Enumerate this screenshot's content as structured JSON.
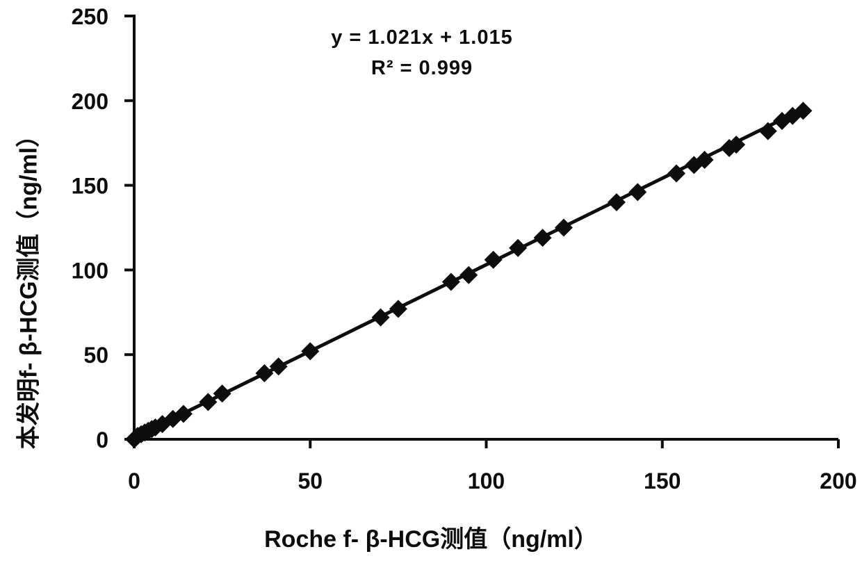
{
  "figure": {
    "background": "#ffffff",
    "ink_color": "#0d0d0d"
  },
  "chart_data": {
    "type": "scatter",
    "title": "",
    "xlabel": "Roche f- β-HCG测值（ng/ml）",
    "ylabel": "本发明f- β-HCG测值（ng/ml）",
    "xlim": [
      0,
      200
    ],
    "ylim": [
      0,
      250
    ],
    "x_ticks": [
      0,
      50,
      100,
      150,
      200
    ],
    "y_ticks": [
      0,
      50,
      100,
      150,
      200,
      250
    ],
    "grid": false,
    "legend": "none",
    "marker": "diamond",
    "marker_color": "#0d0d0d",
    "equation_label": "y = 1.021x + 1.015",
    "r2_label": "R² = 0.999",
    "trendline": {
      "slope": 1.021,
      "intercept": 1.015,
      "r_squared": 0.999,
      "x_start": 0,
      "x_end": 190.7
    },
    "points": [
      [
        0,
        0
      ],
      [
        0.5,
        1
      ],
      [
        1,
        2
      ],
      [
        2,
        3
      ],
      [
        3,
        4
      ],
      [
        4,
        5
      ],
      [
        5,
        6
      ],
      [
        6,
        7
      ],
      [
        8,
        9
      ],
      [
        11,
        12
      ],
      [
        14,
        15
      ],
      [
        21,
        22
      ],
      [
        25,
        27
      ],
      [
        37,
        39
      ],
      [
        41,
        43
      ],
      [
        50,
        52
      ],
      [
        70,
        72
      ],
      [
        75,
        77
      ],
      [
        90,
        93
      ],
      [
        95,
        97
      ],
      [
        102,
        106
      ],
      [
        109,
        113
      ],
      [
        116,
        119
      ],
      [
        122,
        125
      ],
      [
        137,
        140
      ],
      [
        143,
        146
      ],
      [
        154,
        157
      ],
      [
        159,
        162
      ],
      [
        162,
        165
      ],
      [
        169,
        172
      ],
      [
        171,
        174
      ],
      [
        180,
        182
      ],
      [
        184,
        188
      ],
      [
        187,
        191
      ],
      [
        190,
        194
      ]
    ]
  }
}
